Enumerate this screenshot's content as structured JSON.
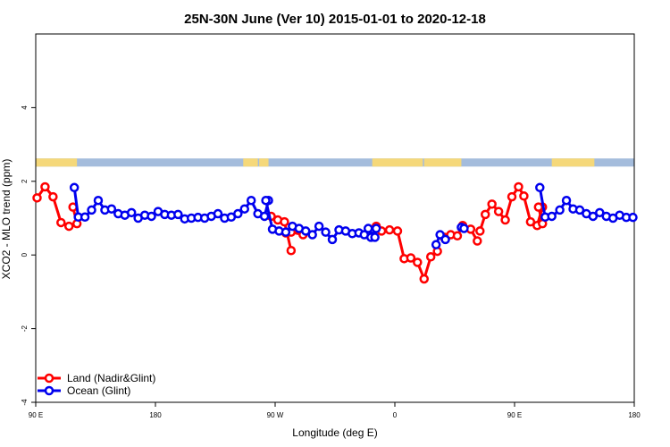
{
  "chart_data": {
    "type": "line",
    "title": "25N-30N June (Ver 10)   2015-01-01 to 2020-12-18",
    "xlabel": "Longitude (deg E)",
    "ylabel": "XCO2 - MLO trend (ppm)",
    "xlim": [
      90,
      540
    ],
    "ylim": [
      -4,
      6
    ],
    "x_ticks": [
      {
        "value": 90,
        "label": "90 E"
      },
      {
        "value": 180,
        "label": "180"
      },
      {
        "value": 270,
        "label": "90 W"
      },
      {
        "value": 360,
        "label": "0"
      },
      {
        "value": 450,
        "label": "90 E"
      },
      {
        "value": 540,
        "label": "180"
      }
    ],
    "y_ticks": [
      {
        "value": -4,
        "label": "-4"
      },
      {
        "value": -2,
        "label": "-2"
      },
      {
        "value": 0,
        "label": "0"
      },
      {
        "value": 2,
        "label": "2"
      },
      {
        "value": 4,
        "label": "4"
      }
    ],
    "legend_position": "bottom-left",
    "land_mask_band": {
      "y_range": [
        2.4,
        2.62
      ],
      "ocean_color": "#a4bcdc",
      "land_color": "#f5d87a",
      "land_segments": [
        [
          90,
          121
        ],
        [
          246,
          257
        ],
        [
          258,
          265
        ],
        [
          343,
          381
        ],
        [
          382,
          410
        ],
        [
          478,
          510
        ]
      ]
    },
    "series": [
      {
        "name": "Land (Nadir&Glint)",
        "color": "#ff0000",
        "segments": [
          {
            "x": [
              91,
              97,
              103,
              109,
              115
            ],
            "y": [
              1.55,
              1.85,
              1.58,
              0.88,
              0.78
            ]
          },
          {
            "x": [
              118,
              121
            ],
            "y": [
              1.3,
              0.85
            ]
          },
          {
            "x": [
              267,
              272,
              277,
              282
            ],
            "y": [
              1.05,
              0.95,
              0.9,
              0.12
            ]
          },
          {
            "x": [
              278,
              282,
              291
            ],
            "y": [
              0.6,
              0.62,
              0.55
            ]
          },
          {
            "x": [
              346,
              350,
              356,
              362,
              367,
              372,
              377,
              382,
              387,
              392
            ],
            "y": [
              0.78,
              0.65,
              0.68,
              0.65,
              -0.1,
              -0.08,
              -0.2,
              -0.65,
              -0.05,
              0.1
            ]
          },
          {
            "x": [
              397,
              402,
              407,
              411,
              417,
              422
            ],
            "y": [
              0.48,
              0.55,
              0.52,
              0.8,
              0.7,
              0.38
            ]
          },
          {
            "x": [
              424,
              428,
              433,
              438,
              443,
              448,
              453,
              457,
              462,
              467,
              471
            ],
            "y": [
              0.65,
              1.1,
              1.38,
              1.18,
              0.95,
              1.58,
              1.85,
              1.6,
              0.9,
              0.8,
              1.3
            ]
          },
          {
            "x": [
              468,
              471
            ],
            "y": [
              1.3,
              0.85
            ]
          }
        ]
      },
      {
        "name": "Ocean (Glint)",
        "color": "#0000ee",
        "segments": [
          {
            "x": [
              119,
              122,
              127,
              132,
              137,
              142,
              147,
              152,
              157,
              162,
              167,
              172,
              177,
              182,
              187,
              192,
              197,
              202,
              207,
              212,
              217,
              222,
              227,
              232,
              237,
              242,
              247,
              252,
              257,
              262,
              265
            ],
            "y": [
              1.83,
              1.03,
              1.03,
              1.22,
              1.48,
              1.22,
              1.25,
              1.12,
              1.08,
              1.15,
              1.0,
              1.08,
              1.05,
              1.18,
              1.1,
              1.08,
              1.1,
              0.98,
              1.0,
              1.02,
              1.0,
              1.05,
              1.12,
              1.0,
              1.03,
              1.12,
              1.25,
              1.48,
              1.12,
              1.05,
              1.48
            ]
          },
          {
            "x": [
              263,
              268,
              273,
              278,
              283,
              288,
              293,
              298,
              303,
              308,
              313,
              318,
              323,
              328,
              333,
              337,
              342,
              346
            ],
            "y": [
              1.48,
              0.7,
              0.65,
              0.62,
              0.78,
              0.72,
              0.65,
              0.55,
              0.78,
              0.62,
              0.42,
              0.68,
              0.65,
              0.58,
              0.6,
              0.55,
              0.48,
              0.72
            ]
          },
          {
            "x": [
              340,
              345
            ],
            "y": [
              0.72,
              0.48
            ]
          },
          {
            "x": [
              391,
              394,
              398
            ],
            "y": [
              0.28,
              0.55,
              0.42
            ]
          },
          {
            "x": [
              410,
              412
            ],
            "y": [
              0.75,
              0.72
            ]
          },
          {
            "x": [
              469,
              473,
              478,
              484,
              489,
              494,
              499,
              504,
              509,
              514,
              519,
              524,
              529,
              534,
              539
            ],
            "y": [
              1.83,
              1.03,
              1.05,
              1.22,
              1.48,
              1.25,
              1.22,
              1.12,
              1.05,
              1.15,
              1.05,
              1.0,
              1.08,
              1.02,
              1.02
            ]
          }
        ]
      }
    ]
  }
}
